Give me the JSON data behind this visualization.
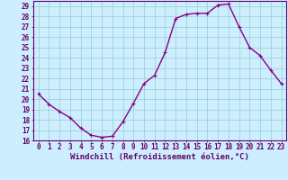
{
  "x": [
    0,
    1,
    2,
    3,
    4,
    5,
    6,
    7,
    8,
    9,
    10,
    11,
    12,
    13,
    14,
    15,
    16,
    17,
    18,
    19,
    20,
    21,
    22,
    23
  ],
  "y": [
    20.5,
    19.5,
    18.8,
    18.2,
    17.2,
    16.5,
    16.3,
    16.4,
    17.8,
    19.6,
    21.5,
    22.3,
    24.5,
    27.8,
    28.2,
    28.3,
    28.3,
    29.1,
    29.2,
    27.0,
    25.0,
    24.2,
    22.8,
    21.5
  ],
  "line_color": "#880088",
  "marker": "+",
  "marker_size": 3.5,
  "bg_color": "#cceeff",
  "grid_color": "#99cccc",
  "xlabel": "Windchill (Refroidissement éolien,°C)",
  "ylim": [
    16,
    29.5
  ],
  "xlim": [
    -0.5,
    23.5
  ],
  "yticks": [
    16,
    17,
    18,
    19,
    20,
    21,
    22,
    23,
    24,
    25,
    26,
    27,
    28,
    29
  ],
  "xticks": [
    0,
    1,
    2,
    3,
    4,
    5,
    6,
    7,
    8,
    9,
    10,
    11,
    12,
    13,
    14,
    15,
    16,
    17,
    18,
    19,
    20,
    21,
    22,
    23
  ],
  "tick_label_size": 5.5,
  "xlabel_size": 6.5,
  "axis_color": "#660066",
  "spine_color": "#660066",
  "linewidth": 1.0,
  "marker_color": "#880088"
}
